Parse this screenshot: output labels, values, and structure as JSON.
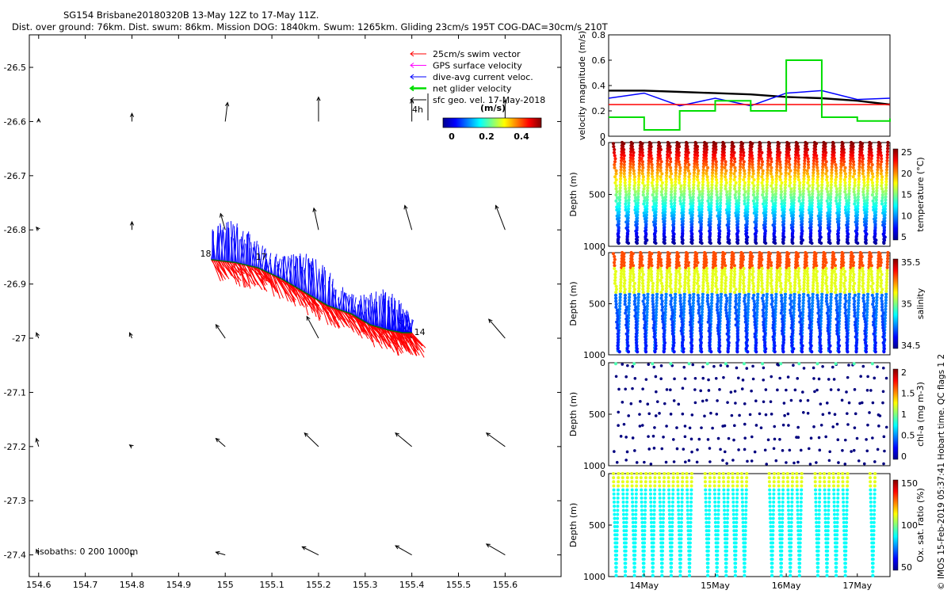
{
  "header": {
    "line1": "SG154 Brisbane20180320B 13-May 12Z to 17-May 11Z.",
    "line2": "Dist. over ground: 76km. Dist. swum: 86km. Mission DOG: 1840km. Swum: 1265km. Gliding 23cm/s 195T COG-DAC=30cm/s 210T"
  },
  "side_label": "© IMOS 15-Feb-2019 05:37:41 Hobart time. QC flags 1  2",
  "chart_data": [
    {
      "id": "map",
      "type": "scatter",
      "title": "Glider track and velocity vectors",
      "xlim": [
        154.58,
        155.72
      ],
      "ylim": [
        -27.44,
        -26.44
      ],
      "x_ticks": [
        "154.6",
        "154.7",
        "154.8",
        "154.9",
        "155",
        "155.1",
        "155.2",
        "155.3",
        "155.4",
        "155.5",
        "155.6"
      ],
      "y_ticks": [
        "-26.5",
        "-26.6",
        "-26.7",
        "-26.8",
        "-26.9",
        "-27",
        "-27.1",
        "-27.2",
        "-27.3",
        "-27.4"
      ],
      "legend": {
        "placement": "top-right",
        "entries": [
          {
            "label": "25cm/s swim vector",
            "color": "#ff0000"
          },
          {
            "label": "GPS surface velocity",
            "color": "#ff00ff"
          },
          {
            "label": "dive-avg current veloc.",
            "color": "#0000ff"
          },
          {
            "label": "net glider velocity",
            "color": "#00dd00"
          },
          {
            "label": "sfc geo. vel. 17-May-2018",
            "color": "#000000"
          }
        ]
      },
      "colorbar": {
        "title": "(m/s)",
        "ticks": [
          "0",
          "0.2",
          "0.4"
        ]
      },
      "scale_label": "4h",
      "isobath_label": "isobaths: 0   200  1000m",
      "track_labels": [
        "18",
        "17",
        "14"
      ],
      "track": [
        [
          154.97,
          -26.855
        ],
        [
          155.02,
          -26.86
        ],
        [
          155.07,
          -26.87
        ],
        [
          155.12,
          -26.89
        ],
        [
          155.17,
          -26.915
        ],
        [
          155.22,
          -26.94
        ],
        [
          155.27,
          -26.955
        ],
        [
          155.31,
          -26.975
        ],
        [
          155.35,
          -26.985
        ],
        [
          155.38,
          -26.99
        ],
        [
          155.4,
          -26.99
        ]
      ],
      "geo_vectors": [
        [
          154.6,
          -26.6,
          0.0,
          0.005
        ],
        [
          154.8,
          -26.6,
          0.0,
          0.015
        ],
        [
          155.0,
          -26.6,
          0.005,
          0.035
        ],
        [
          155.2,
          -26.6,
          0.0,
          0.045
        ],
        [
          155.4,
          -26.6,
          0.0,
          0.04
        ],
        [
          155.6,
          -26.6,
          0.0,
          0.04
        ],
        [
          154.6,
          -26.8,
          -0.005,
          0.005
        ],
        [
          154.8,
          -26.8,
          0.0,
          0.015
        ],
        [
          155.0,
          -26.8,
          -0.01,
          0.03
        ],
        [
          155.2,
          -26.8,
          -0.01,
          0.04
        ],
        [
          155.4,
          -26.8,
          -0.015,
          0.045
        ],
        [
          155.6,
          -26.8,
          -0.02,
          0.045
        ],
        [
          154.6,
          -27.0,
          -0.005,
          0.01
        ],
        [
          154.8,
          -27.0,
          -0.005,
          0.01
        ],
        [
          155.0,
          -27.0,
          -0.02,
          0.025
        ],
        [
          155.2,
          -27.0,
          -0.025,
          0.04
        ],
        [
          155.4,
          -27.0,
          -0.03,
          0.035
        ],
        [
          155.6,
          -27.0,
          -0.035,
          0.035
        ],
        [
          154.6,
          -27.2,
          -0.005,
          0.015
        ],
        [
          154.8,
          -27.2,
          -0.005,
          0.003
        ],
        [
          155.0,
          -27.2,
          -0.02,
          0.015
        ],
        [
          155.2,
          -27.2,
          -0.03,
          0.025
        ],
        [
          155.4,
          -27.2,
          -0.035,
          0.025
        ],
        [
          155.6,
          -27.2,
          -0.04,
          0.025
        ],
        [
          154.6,
          -27.4,
          -0.005,
          0.01
        ],
        [
          154.8,
          -27.4,
          -0.003,
          0.003
        ],
        [
          155.0,
          -27.4,
          -0.02,
          0.005
        ],
        [
          155.2,
          -27.4,
          -0.035,
          0.015
        ],
        [
          155.4,
          -27.4,
          -0.035,
          0.017
        ],
        [
          155.6,
          -27.4,
          -0.04,
          0.02
        ]
      ]
    },
    {
      "id": "velocity",
      "type": "line",
      "ylabel": "velocity magnitude (m/s)",
      "ylim": [
        0,
        0.8
      ],
      "y_ticks": [
        "0",
        "0.2",
        "0.4",
        "0.6",
        "0.8"
      ],
      "x": [
        13.5,
        14.0,
        14.5,
        15.0,
        15.5,
        16.0,
        16.5,
        17.0,
        17.46
      ],
      "series": [
        {
          "name": "black",
          "color": "#000000",
          "values": [
            0.36,
            0.36,
            0.35,
            0.34,
            0.33,
            0.31,
            0.3,
            0.28,
            0.25
          ]
        },
        {
          "name": "blue",
          "color": "#0000ff",
          "values": [
            0.3,
            0.34,
            0.24,
            0.3,
            0.24,
            0.34,
            0.36,
            0.29,
            0.3
          ]
        },
        {
          "name": "red",
          "color": "#ff0000",
          "values": [
            0.25,
            0.25,
            0.25,
            0.25,
            0.25,
            0.25,
            0.25,
            0.25,
            0.25
          ]
        },
        {
          "name": "green",
          "color": "#00dd00",
          "values": [
            0.15,
            0.05,
            0.2,
            0.28,
            0.2,
            0.6,
            0.15,
            0.12,
            0.14
          ]
        }
      ]
    },
    {
      "id": "temperature",
      "type": "scatter",
      "ylabel": "Depth (m)",
      "cbar_label": "temperature (°C)",
      "cbar_ticks": [
        "5",
        "10",
        "15",
        "20",
        "25"
      ],
      "y_ticks": [
        "0",
        "500",
        "1000"
      ],
      "ylim": [
        1000,
        0
      ]
    },
    {
      "id": "salinity",
      "type": "scatter",
      "ylabel": "Depth (m)",
      "cbar_label": "salinity",
      "cbar_ticks": [
        "34.5",
        "35",
        "35.5"
      ],
      "y_ticks": [
        "0",
        "500",
        "1000"
      ],
      "ylim": [
        1000,
        0
      ]
    },
    {
      "id": "chla",
      "type": "scatter",
      "ylabel": "Depth (m)",
      "cbar_label": "chl-a (mg m-3)",
      "cbar_ticks": [
        "0",
        "0.5",
        "1",
        "1.5",
        "2"
      ],
      "y_ticks": [
        "0",
        "500",
        "1000"
      ],
      "ylim": [
        1000,
        0
      ]
    },
    {
      "id": "oxygen",
      "type": "scatter",
      "ylabel": "Depth (m)",
      "cbar_label": "Ox. sat. ratio (%)",
      "cbar_ticks": [
        "50",
        "100",
        "150"
      ],
      "y_ticks": [
        "0",
        "500",
        "1000"
      ],
      "ylim": [
        1000,
        0
      ],
      "x_ticks": [
        "14May",
        "15May",
        "16May",
        "17May"
      ]
    }
  ]
}
